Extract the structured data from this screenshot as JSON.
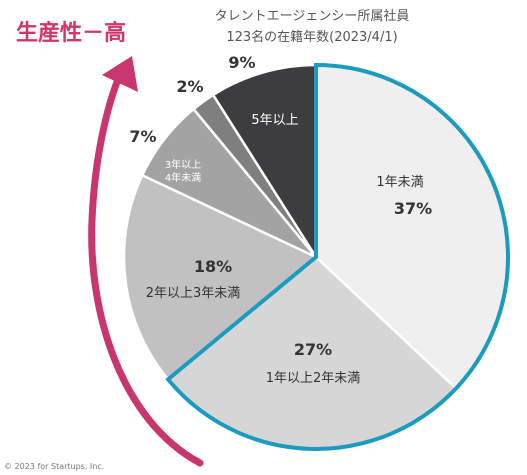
{
  "callout": "生産性－高",
  "credit": "© 2023 for Startups, Inc.",
  "colors": {
    "highlight_ring": "#1a9bbf",
    "arrow": "#c9356e",
    "callout_text": "#d6336c"
  },
  "chart_data": {
    "type": "pie",
    "title_lines": [
      "タレントエージェンシー所属社員",
      "123名の在籍年数(2023/4/1)"
    ],
    "slices": [
      {
        "label": "1年未満",
        "value": 37,
        "percent_text": "37%",
        "color": "#efefef",
        "highlight": true
      },
      {
        "label": "1年以上2年未満",
        "value": 27,
        "percent_text": "27%",
        "color": "#d6d6d6",
        "highlight": true
      },
      {
        "label": "2年以上3年未満",
        "value": 18,
        "percent_text": "18%",
        "color": "#c1c1c1",
        "highlight": false
      },
      {
        "label": "3年以上\n4年未満",
        "value": 7,
        "percent_text": "7%",
        "color": "#a3a3a3",
        "highlight": false
      },
      {
        "label": "",
        "value": 2,
        "percent_text": "2%",
        "color": "#7f7f7f",
        "highlight": false
      },
      {
        "label": "5年以上",
        "value": 9,
        "percent_text": "9%",
        "color": "#3d3d3f",
        "highlight": false
      }
    ]
  }
}
